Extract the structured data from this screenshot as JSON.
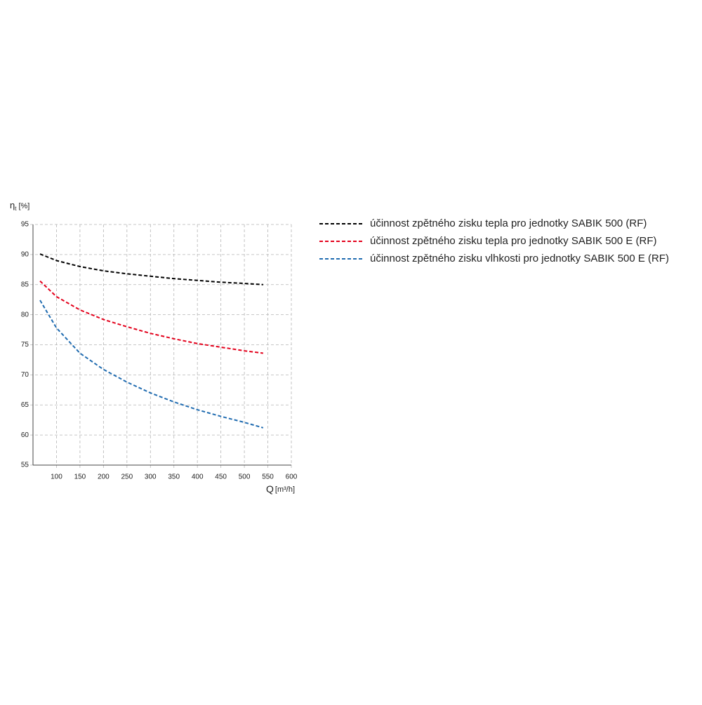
{
  "chart_data": {
    "type": "line",
    "y_label": "η",
    "y_label_sub": "t",
    "y_label_unit": "[%]",
    "x_label": "Q",
    "x_label_unit": "[m³/h]",
    "x": [
      65,
      100,
      150,
      200,
      250,
      300,
      350,
      400,
      450,
      500,
      540
    ],
    "series": [
      {
        "name": "účinnost zpětného zisku tepla pro jednotky SABIK 500 (RF)",
        "color": "#000000",
        "values": [
          90.1,
          89.0,
          88.0,
          87.3,
          86.8,
          86.4,
          86.0,
          85.7,
          85.4,
          85.2,
          85.0
        ]
      },
      {
        "name": "účinnost zpětného zisku tepla pro jednotky SABIK 500 E (RF)",
        "color": "#e3001b",
        "values": [
          85.6,
          83.0,
          80.8,
          79.2,
          78.0,
          76.9,
          76.0,
          75.2,
          74.6,
          74.0,
          73.6
        ]
      },
      {
        "name": "účinnost zpětného zisku vlhkosti pro jednotky SABIK 500 E (RF)",
        "color": "#1f6bb0",
        "values": [
          82.4,
          77.8,
          73.6,
          70.9,
          68.8,
          67.0,
          65.5,
          64.2,
          63.1,
          62.1,
          61.2
        ]
      }
    ],
    "xlim": [
      50,
      600
    ],
    "ylim": [
      55,
      95
    ],
    "xticks": [
      100,
      150,
      200,
      250,
      300,
      350,
      400,
      450,
      500,
      550,
      600
    ],
    "yticks": [
      55,
      60,
      65,
      70,
      75,
      80,
      85,
      90,
      95
    ],
    "grid": true,
    "dashed": true
  }
}
